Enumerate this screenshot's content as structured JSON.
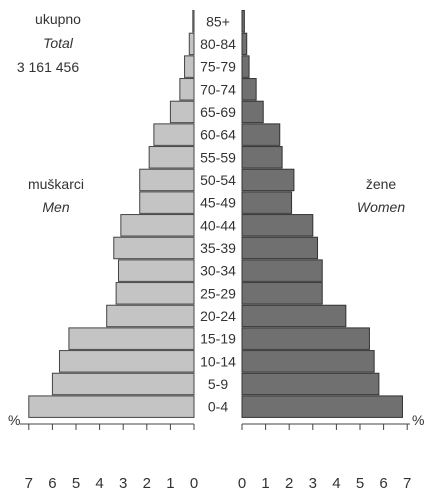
{
  "chart_data": {
    "type": "bar",
    "subtype": "population-pyramid",
    "total_label": "ukupno",
    "total_label_en": "Total",
    "total_value": "3 161 456",
    "unit": "%",
    "categories": [
      "0-4",
      "5-9",
      "10-14",
      "15-19",
      "20-24",
      "25-29",
      "30-34",
      "35-39",
      "40-44",
      "45-49",
      "50-54",
      "55-59",
      "60-64",
      "65-69",
      "70-74",
      "75-79",
      "80-84",
      "85+"
    ],
    "series": [
      {
        "name": "muškarci",
        "name_en": "Men",
        "side": "left",
        "color": "#c4c4c4",
        "values": [
          7.0,
          6.0,
          5.7,
          5.3,
          3.7,
          3.3,
          3.2,
          3.4,
          3.1,
          2.3,
          2.3,
          1.9,
          1.7,
          1.0,
          0.6,
          0.4,
          0.2,
          0.05
        ]
      },
      {
        "name": "žene",
        "name_en": "Women",
        "side": "right",
        "color": "#707070",
        "values": [
          6.8,
          5.8,
          5.6,
          5.4,
          4.4,
          3.4,
          3.4,
          3.2,
          3.0,
          2.1,
          2.2,
          1.7,
          1.6,
          0.9,
          0.6,
          0.3,
          0.2,
          0.1
        ]
      }
    ],
    "xaxis_left": {
      "ticks": [
        7,
        6,
        5,
        4,
        3,
        2,
        1,
        0
      ],
      "range": [
        0,
        7
      ]
    },
    "xaxis_right": {
      "ticks": [
        0,
        1,
        2,
        3,
        4,
        5,
        6,
        7
      ],
      "range": [
        0,
        7
      ]
    },
    "grid": false
  }
}
